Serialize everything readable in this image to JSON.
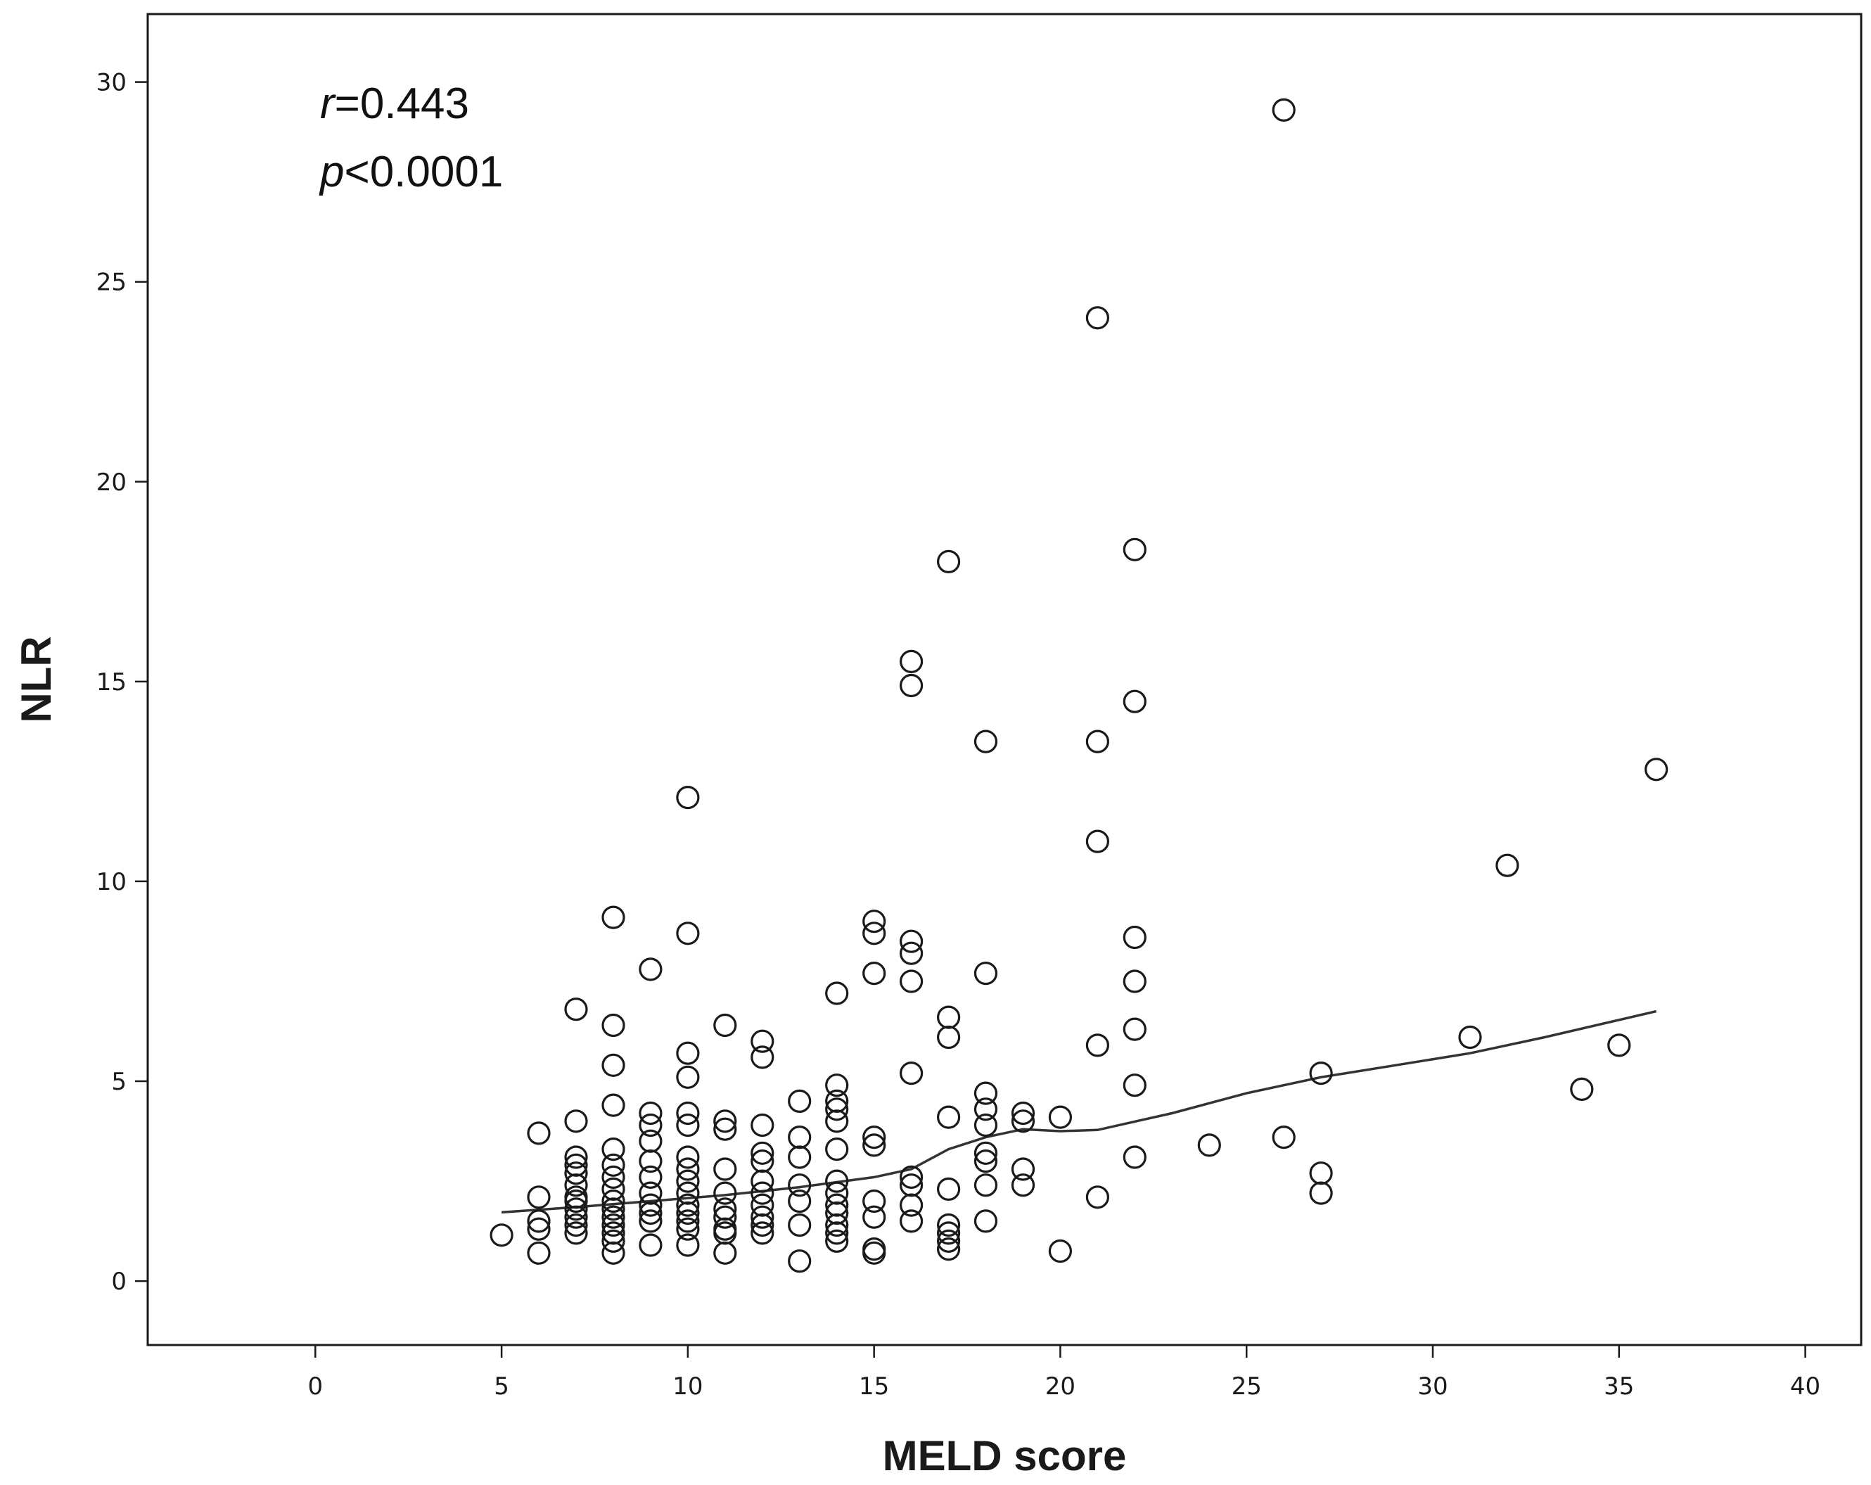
{
  "chart_data": {
    "type": "scatter",
    "title": "",
    "xlabel": "MELD score",
    "ylabel": "NLR",
    "xlim": [
      -4.5,
      41.5
    ],
    "ylim": [
      -1.6,
      31.7
    ],
    "xticks": [
      0,
      5,
      10,
      15,
      20,
      25,
      30,
      35,
      40
    ],
    "yticks": [
      0,
      5,
      10,
      15,
      20,
      25,
      30
    ],
    "grid": false,
    "annotations": {
      "r_symbol": "r",
      "r_value": "=0.443",
      "p_symbol": "p",
      "p_value": "<0.0001"
    },
    "points": [
      [
        5,
        1.15
      ],
      [
        6,
        3.7
      ],
      [
        6,
        2.1
      ],
      [
        6,
        1.5
      ],
      [
        6,
        1.3
      ],
      [
        6,
        0.7
      ],
      [
        7,
        6.8
      ],
      [
        7,
        4.0
      ],
      [
        7,
        3.1
      ],
      [
        7,
        2.9
      ],
      [
        7,
        2.7
      ],
      [
        7,
        2.4
      ],
      [
        7,
        2.1
      ],
      [
        7,
        2.0
      ],
      [
        7,
        1.8
      ],
      [
        7,
        1.6
      ],
      [
        7,
        1.4
      ],
      [
        7,
        1.2
      ],
      [
        8,
        9.1
      ],
      [
        8,
        6.4
      ],
      [
        8,
        5.4
      ],
      [
        8,
        4.4
      ],
      [
        8,
        3.3
      ],
      [
        8,
        2.9
      ],
      [
        8,
        2.6
      ],
      [
        8,
        2.3
      ],
      [
        8,
        2.0
      ],
      [
        8,
        1.8
      ],
      [
        8,
        1.6
      ],
      [
        8,
        1.4
      ],
      [
        8,
        1.2
      ],
      [
        8,
        1.0
      ],
      [
        8,
        0.7
      ],
      [
        9,
        7.8
      ],
      [
        9,
        4.2
      ],
      [
        9,
        3.9
      ],
      [
        9,
        3.5
      ],
      [
        9,
        3.0
      ],
      [
        9,
        2.6
      ],
      [
        9,
        2.2
      ],
      [
        9,
        1.9
      ],
      [
        9,
        1.7
      ],
      [
        9,
        1.5
      ],
      [
        9,
        0.9
      ],
      [
        10,
        12.1
      ],
      [
        10,
        8.7
      ],
      [
        10,
        5.7
      ],
      [
        10,
        5.1
      ],
      [
        10,
        4.2
      ],
      [
        10,
        3.9
      ],
      [
        10,
        3.1
      ],
      [
        10,
        2.8
      ],
      [
        10,
        2.5
      ],
      [
        10,
        2.2
      ],
      [
        10,
        1.9
      ],
      [
        10,
        1.7
      ],
      [
        10,
        1.5
      ],
      [
        10,
        1.3
      ],
      [
        10,
        0.9
      ],
      [
        11,
        6.4
      ],
      [
        11,
        4.0
      ],
      [
        11,
        3.8
      ],
      [
        11,
        2.8
      ],
      [
        11,
        2.2
      ],
      [
        11,
        1.8
      ],
      [
        11,
        1.6
      ],
      [
        11,
        1.3
      ],
      [
        11,
        1.2
      ],
      [
        11,
        0.7
      ],
      [
        12,
        6.0
      ],
      [
        12,
        5.6
      ],
      [
        12,
        3.9
      ],
      [
        12,
        3.2
      ],
      [
        12,
        3.0
      ],
      [
        12,
        2.5
      ],
      [
        12,
        2.2
      ],
      [
        12,
        1.9
      ],
      [
        12,
        1.6
      ],
      [
        12,
        1.4
      ],
      [
        12,
        1.2
      ],
      [
        13,
        4.5
      ],
      [
        13,
        3.6
      ],
      [
        13,
        3.1
      ],
      [
        13,
        2.4
      ],
      [
        13,
        2.0
      ],
      [
        13,
        1.4
      ],
      [
        13,
        0.5
      ],
      [
        14,
        7.2
      ],
      [
        14,
        4.9
      ],
      [
        14,
        4.5
      ],
      [
        14,
        4.3
      ],
      [
        14,
        4.0
      ],
      [
        14,
        3.3
      ],
      [
        14,
        2.5
      ],
      [
        14,
        2.2
      ],
      [
        14,
        1.9
      ],
      [
        14,
        1.7
      ],
      [
        14,
        1.4
      ],
      [
        14,
        1.2
      ],
      [
        14,
        1.0
      ],
      [
        15,
        9.0
      ],
      [
        15,
        8.7
      ],
      [
        15,
        7.7
      ],
      [
        15,
        3.6
      ],
      [
        15,
        3.4
      ],
      [
        15,
        2.0
      ],
      [
        15,
        1.6
      ],
      [
        15,
        0.8
      ],
      [
        15,
        0.7
      ],
      [
        16,
        15.5
      ],
      [
        16,
        14.9
      ],
      [
        16,
        8.5
      ],
      [
        16,
        8.2
      ],
      [
        16,
        7.5
      ],
      [
        16,
        5.2
      ],
      [
        16,
        2.6
      ],
      [
        16,
        2.4
      ],
      [
        16,
        1.9
      ],
      [
        16,
        1.5
      ],
      [
        17,
        18.0
      ],
      [
        17,
        6.6
      ],
      [
        17,
        6.1
      ],
      [
        17,
        4.1
      ],
      [
        17,
        2.3
      ],
      [
        17,
        1.4
      ],
      [
        17,
        1.2
      ],
      [
        17,
        1.0
      ],
      [
        17,
        0.8
      ],
      [
        18,
        13.5
      ],
      [
        18,
        7.7
      ],
      [
        18,
        4.7
      ],
      [
        18,
        4.3
      ],
      [
        18,
        3.9
      ],
      [
        18,
        3.2
      ],
      [
        18,
        3.0
      ],
      [
        18,
        2.4
      ],
      [
        18,
        1.5
      ],
      [
        19,
        4.2
      ],
      [
        19,
        4.0
      ],
      [
        19,
        2.8
      ],
      [
        19,
        2.4
      ],
      [
        20,
        4.1
      ],
      [
        20,
        0.75
      ],
      [
        21,
        24.1
      ],
      [
        21,
        13.5
      ],
      [
        21,
        11.0
      ],
      [
        21,
        5.9
      ],
      [
        21,
        2.1
      ],
      [
        22,
        18.3
      ],
      [
        22,
        14.5
      ],
      [
        22,
        8.6
      ],
      [
        22,
        7.5
      ],
      [
        22,
        6.3
      ],
      [
        22,
        4.9
      ],
      [
        22,
        3.1
      ],
      [
        24,
        3.4
      ],
      [
        26,
        29.3
      ],
      [
        26,
        3.6
      ],
      [
        27,
        5.2
      ],
      [
        27,
        2.7
      ],
      [
        27,
        2.2
      ],
      [
        31,
        6.1
      ],
      [
        32,
        10.4
      ],
      [
        34,
        4.8
      ],
      [
        35,
        5.9
      ],
      [
        36,
        12.8
      ]
    ],
    "fit_line": [
      [
        5,
        1.72
      ],
      [
        7,
        1.85
      ],
      [
        9,
        2.0
      ],
      [
        11,
        2.15
      ],
      [
        13,
        2.35
      ],
      [
        15,
        2.6
      ],
      [
        16,
        2.8
      ],
      [
        17,
        3.3
      ],
      [
        18,
        3.6
      ],
      [
        19,
        3.8
      ],
      [
        20,
        3.75
      ],
      [
        21,
        3.78
      ],
      [
        23,
        4.2
      ],
      [
        25,
        4.7
      ],
      [
        27,
        5.1
      ],
      [
        29,
        5.4
      ],
      [
        31,
        5.7
      ],
      [
        33,
        6.1
      ],
      [
        36,
        6.75
      ]
    ]
  }
}
